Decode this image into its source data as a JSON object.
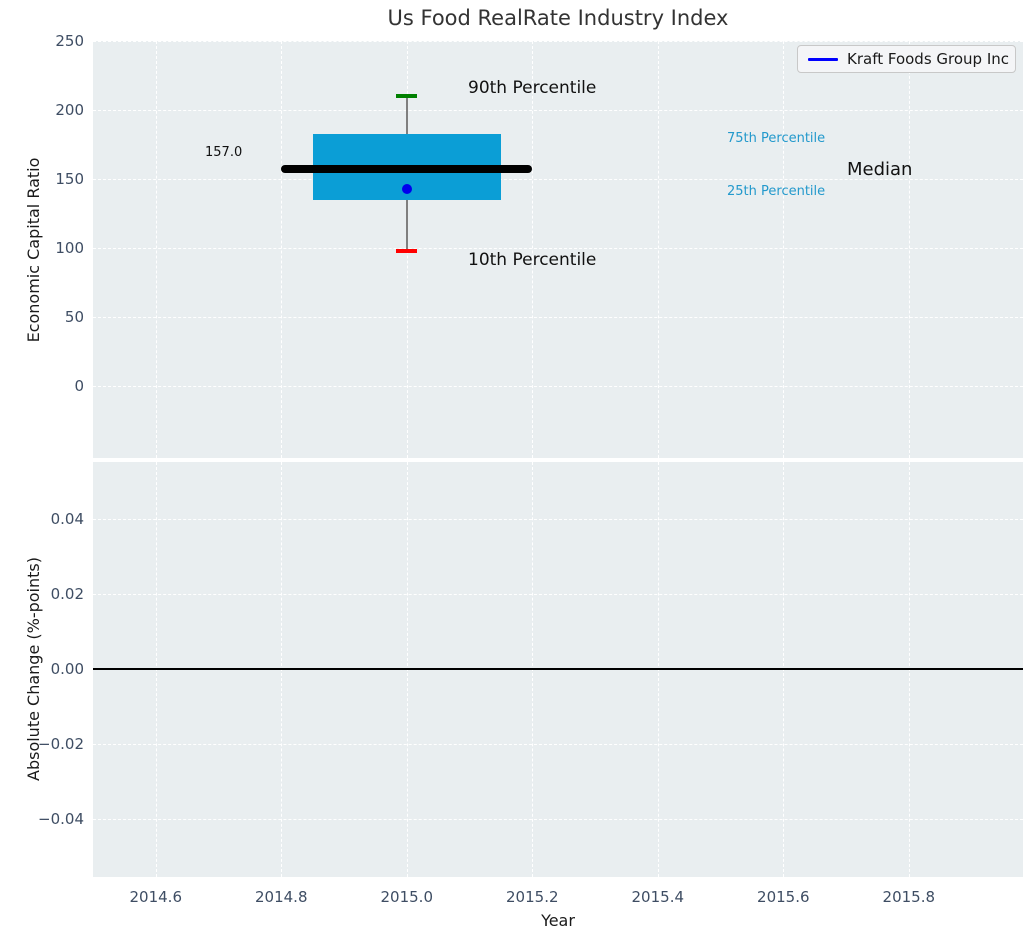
{
  "title": "Us Food RealRate Industry Index",
  "colors": {
    "axes_background": "#e9eef0",
    "grid": "#ffffff",
    "box_fill": "#0b9ed6",
    "median_line": "#000000",
    "whisker": "#7f7f7f",
    "cap_90th": "#008000",
    "cap_10th": "#ff0000",
    "company_point": "#0000ee",
    "legend_line": "#0000ff",
    "percentile_text": "#2399cc",
    "zero_line": "#000000",
    "tick_text": "#3e4d63"
  },
  "legend": {
    "label": "Kraft Foods Group Inc"
  },
  "annotations": {
    "p90": "90th Percentile",
    "p10": "10th Percentile",
    "p75": "75th Percentile",
    "p25": "25th Percentile",
    "median": "Median",
    "median_value": "157.0"
  },
  "chart_data": [
    {
      "type": "box",
      "title": "Us Food RealRate Industry Index",
      "xlabel": "Year",
      "ylabel": "Economic Capital Ratio",
      "x_center": 2015.0,
      "percentiles": {
        "p10": 98,
        "p25": 135,
        "median": 157,
        "p75": 183,
        "p90": 210
      },
      "median_label": "157.0",
      "series": [
        {
          "name": "Kraft Foods Group Inc",
          "x": 2015.0,
          "y": 143
        }
      ],
      "box_x_range": [
        2014.85,
        2015.15
      ],
      "median_x_range": [
        2014.8,
        2015.2
      ],
      "xlim": [
        2014.5,
        2015.982
      ],
      "ylim": [
        -52,
        250
      ],
      "yticks": [
        250,
        200,
        150,
        100,
        50,
        0
      ],
      "ytick_labels": [
        "250",
        "200",
        "150",
        "100",
        "50",
        "0"
      ],
      "xticks": [
        2014.6,
        2014.8,
        2015.0,
        2015.2,
        2015.4,
        2015.6,
        2015.8
      ],
      "grid": "white dashed, on",
      "legend_position": "upper right"
    },
    {
      "type": "line",
      "xlabel": "Year",
      "ylabel": "Absolute Change (%-points)",
      "series": [],
      "zero_line": 0.0,
      "xlim": [
        2014.5,
        2015.982
      ],
      "ylim": [
        -0.0555,
        0.0552
      ],
      "yticks": [
        0.04,
        0.02,
        0.0,
        -0.02,
        -0.04
      ],
      "ytick_labels": [
        "0.04",
        "0.02",
        "0.00",
        "−0.02",
        "−0.04"
      ],
      "xticks": [
        2014.6,
        2014.8,
        2015.0,
        2015.2,
        2015.4,
        2015.6,
        2015.8
      ],
      "xtick_labels": [
        "2014.6",
        "2014.8",
        "2015.0",
        "2015.2",
        "2015.4",
        "2015.6",
        "2015.8"
      ],
      "grid": "white dashed, on"
    }
  ]
}
